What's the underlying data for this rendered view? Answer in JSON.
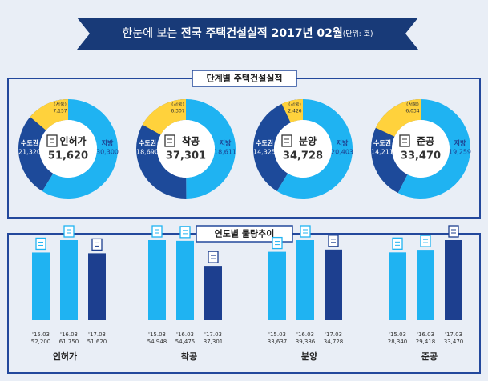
{
  "header": {
    "prefix": "한눈에 보는 ",
    "title": "전국 주택건설실적 2017년 02월",
    "unit": "(단위: 호)"
  },
  "stage": {
    "title": "단계별 주택건설실적",
    "charts": [
      {
        "type": "donut",
        "name": "인허가",
        "total": 51620,
        "total_label": "51,620",
        "series": [
          {
            "name": "수도권",
            "color": "#1d4a9a",
            "value": 21320,
            "value_label": "21,320"
          },
          {
            "name": "지방",
            "color": "#1fb3f2",
            "value": 30300,
            "value_label": "30,300"
          },
          {
            "name": "(서울)",
            "color": "#ffd23c",
            "value": 7157,
            "value_label": "7,157"
          }
        ]
      },
      {
        "type": "donut",
        "name": "착공",
        "total": 37301,
        "total_label": "37,301",
        "series": [
          {
            "name": "수도권",
            "color": "#1d4a9a",
            "value": 18690,
            "value_label": "18,690"
          },
          {
            "name": "지방",
            "color": "#1fb3f2",
            "value": 18611,
            "value_label": "18,611"
          },
          {
            "name": "(서울)",
            "color": "#ffd23c",
            "value": 6307,
            "value_label": "6,307"
          }
        ]
      },
      {
        "type": "donut",
        "name": "분양",
        "total": 34728,
        "total_label": "34,728",
        "series": [
          {
            "name": "수도권",
            "color": "#1d4a9a",
            "value": 14325,
            "value_label": "14,325"
          },
          {
            "name": "지방",
            "color": "#1fb3f2",
            "value": 20403,
            "value_label": "20,403"
          },
          {
            "name": "(서울)",
            "color": "#ffd23c",
            "value": 2426,
            "value_label": "2,426"
          }
        ]
      },
      {
        "type": "donut",
        "name": "준공",
        "total": 33470,
        "total_label": "33,470",
        "series": [
          {
            "name": "수도권",
            "color": "#1d4a9a",
            "value": 14211,
            "value_label": "14,211"
          },
          {
            "name": "지방",
            "color": "#1fb3f2",
            "value": 19259,
            "value_label": "19,259"
          },
          {
            "name": "(서울)",
            "color": "#ffd23c",
            "value": 6034,
            "value_label": "6,034"
          }
        ]
      }
    ]
  },
  "trend": {
    "title": "연도별 물량추이",
    "charts": [
      {
        "type": "bar",
        "name": "인허가",
        "categories": [
          "'15.03",
          "'16.03",
          "'17.03"
        ],
        "values": [
          52200,
          61750,
          51620
        ],
        "value_labels": [
          "52,200",
          "61,750",
          "51,620"
        ],
        "colors": [
          "#1fb3f2",
          "#1fb3f2",
          "#1d3f8f"
        ]
      },
      {
        "type": "bar",
        "name": "착공",
        "categories": [
          "'15.03",
          "'16.03",
          "'17.03"
        ],
        "values": [
          54948,
          54475,
          37301
        ],
        "value_labels": [
          "54,948",
          "54,475",
          "37,301"
        ],
        "colors": [
          "#1fb3f2",
          "#1fb3f2",
          "#1d3f8f"
        ]
      },
      {
        "type": "bar",
        "name": "분양",
        "categories": [
          "'15.03",
          "'16.03",
          "'17.03"
        ],
        "values": [
          33637,
          39386,
          34728
        ],
        "value_labels": [
          "33,637",
          "39,386",
          "34,728"
        ],
        "colors": [
          "#1fb3f2",
          "#1fb3f2",
          "#1d3f8f"
        ]
      },
      {
        "type": "bar",
        "name": "준공",
        "categories": [
          "'15.03",
          "'16.03",
          "'17.03"
        ],
        "values": [
          28340,
          29418,
          33470
        ],
        "value_labels": [
          "28,340",
          "29,418",
          "33,470"
        ],
        "colors": [
          "#1fb3f2",
          "#1fb3f2",
          "#1d3f8f"
        ]
      }
    ]
  }
}
